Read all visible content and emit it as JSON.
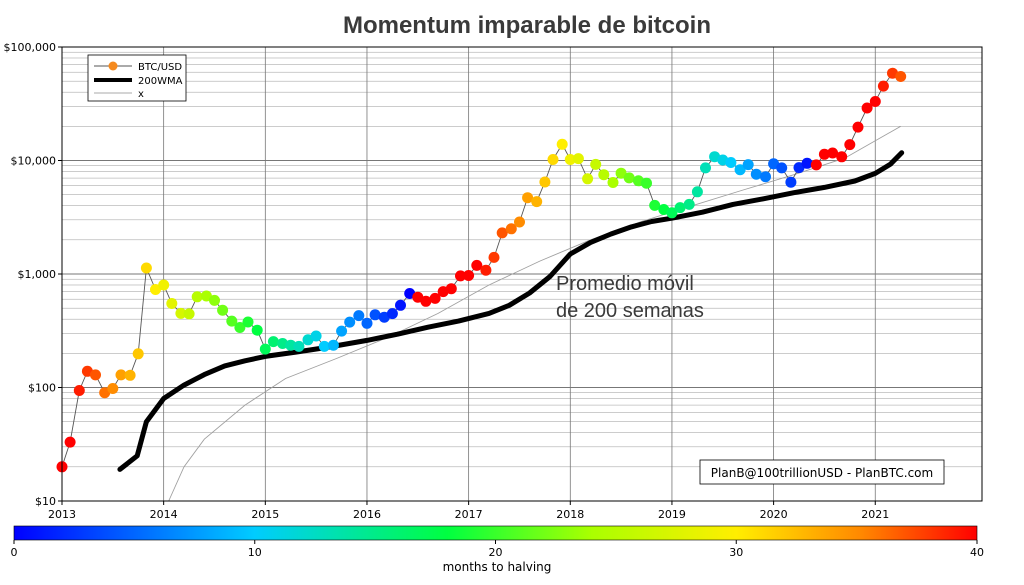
{
  "chart_data": {
    "type": "scatter",
    "title": "Momentum imparable de bitcoin",
    "y_scale": "log",
    "ylim": [
      10,
      100000
    ],
    "xlim": [
      2013.0,
      2022.05
    ],
    "y_ticks": [
      {
        "value": 10,
        "label": "$10"
      },
      {
        "value": 100,
        "label": "$100"
      },
      {
        "value": 1000,
        "label": "$1,000"
      },
      {
        "value": 10000,
        "label": "$10,000"
      },
      {
        "value": 100000,
        "label": "$100,000"
      }
    ],
    "x_ticks": [
      {
        "value": 2013,
        "label": "2013"
      },
      {
        "value": 2014,
        "label": "2014"
      },
      {
        "value": 2015,
        "label": "2015"
      },
      {
        "value": 2016,
        "label": "2016"
      },
      {
        "value": 2017,
        "label": "2017"
      },
      {
        "value": 2018,
        "label": "2018"
      },
      {
        "value": 2019,
        "label": "2019"
      },
      {
        "value": 2020,
        "label": "2020"
      },
      {
        "value": 2021,
        "label": "2021"
      }
    ],
    "grid": true,
    "legend_position": "top-left",
    "legend": [
      "BTC/USD",
      "200WMA",
      "x"
    ],
    "series": [
      {
        "name": "BTC/USD",
        "style": "monthly-dots colored by months to halving",
        "points": [
          {
            "x": 2013.0,
            "y": 20,
            "m": 41
          },
          {
            "x": 2013.08,
            "y": 33,
            "m": 40
          },
          {
            "x": 2013.17,
            "y": 94,
            "m": 39
          },
          {
            "x": 2013.25,
            "y": 139,
            "m": 38
          },
          {
            "x": 2013.33,
            "y": 129,
            "m": 37
          },
          {
            "x": 2013.42,
            "y": 90,
            "m": 36
          },
          {
            "x": 2013.5,
            "y": 98,
            "m": 35
          },
          {
            "x": 2013.58,
            "y": 129,
            "m": 34
          },
          {
            "x": 2013.67,
            "y": 128,
            "m": 33
          },
          {
            "x": 2013.75,
            "y": 198,
            "m": 32
          },
          {
            "x": 2013.83,
            "y": 1130,
            "m": 31
          },
          {
            "x": 2013.92,
            "y": 730,
            "m": 30
          },
          {
            "x": 2014.0,
            "y": 800,
            "m": 29
          },
          {
            "x": 2014.08,
            "y": 550,
            "m": 28
          },
          {
            "x": 2014.17,
            "y": 450,
            "m": 27
          },
          {
            "x": 2014.25,
            "y": 445,
            "m": 26
          },
          {
            "x": 2014.33,
            "y": 630,
            "m": 25
          },
          {
            "x": 2014.42,
            "y": 640,
            "m": 24
          },
          {
            "x": 2014.5,
            "y": 585,
            "m": 23
          },
          {
            "x": 2014.58,
            "y": 480,
            "m": 22
          },
          {
            "x": 2014.67,
            "y": 385,
            "m": 21
          },
          {
            "x": 2014.75,
            "y": 338,
            "m": 20
          },
          {
            "x": 2014.83,
            "y": 378,
            "m": 19
          },
          {
            "x": 2014.92,
            "y": 320,
            "m": 18
          },
          {
            "x": 2015.0,
            "y": 218,
            "m": 17
          },
          {
            "x": 2015.08,
            "y": 254,
            "m": 16
          },
          {
            "x": 2015.17,
            "y": 244,
            "m": 15
          },
          {
            "x": 2015.25,
            "y": 236,
            "m": 14
          },
          {
            "x": 2015.33,
            "y": 230,
            "m": 13
          },
          {
            "x": 2015.42,
            "y": 263,
            "m": 12
          },
          {
            "x": 2015.5,
            "y": 284,
            "m": 11
          },
          {
            "x": 2015.58,
            "y": 230,
            "m": 10
          },
          {
            "x": 2015.67,
            "y": 236,
            "m": 9
          },
          {
            "x": 2015.75,
            "y": 314,
            "m": 8
          },
          {
            "x": 2015.83,
            "y": 377,
            "m": 7
          },
          {
            "x": 2015.92,
            "y": 430,
            "m": 6
          },
          {
            "x": 2016.0,
            "y": 368,
            "m": 5
          },
          {
            "x": 2016.08,
            "y": 437,
            "m": 4
          },
          {
            "x": 2016.17,
            "y": 416,
            "m": 3
          },
          {
            "x": 2016.25,
            "y": 448,
            "m": 2
          },
          {
            "x": 2016.33,
            "y": 530,
            "m": 1
          },
          {
            "x": 2016.42,
            "y": 673,
            "m": 0
          },
          {
            "x": 2016.5,
            "y": 624,
            "m": 47
          },
          {
            "x": 2016.58,
            "y": 575,
            "m": 46
          },
          {
            "x": 2016.67,
            "y": 609,
            "m": 45
          },
          {
            "x": 2016.75,
            "y": 700,
            "m": 44
          },
          {
            "x": 2016.83,
            "y": 742,
            "m": 43
          },
          {
            "x": 2016.92,
            "y": 963,
            "m": 42
          },
          {
            "x": 2017.0,
            "y": 970,
            "m": 41
          },
          {
            "x": 2017.08,
            "y": 1190,
            "m": 40
          },
          {
            "x": 2017.17,
            "y": 1080,
            "m": 39
          },
          {
            "x": 2017.25,
            "y": 1400,
            "m": 38
          },
          {
            "x": 2017.33,
            "y": 2300,
            "m": 37
          },
          {
            "x": 2017.42,
            "y": 2500,
            "m": 36
          },
          {
            "x": 2017.5,
            "y": 2870,
            "m": 35
          },
          {
            "x": 2017.58,
            "y": 4700,
            "m": 34
          },
          {
            "x": 2017.67,
            "y": 4340,
            "m": 33
          },
          {
            "x": 2017.75,
            "y": 6470,
            "m": 32
          },
          {
            "x": 2017.83,
            "y": 10200,
            "m": 31
          },
          {
            "x": 2017.92,
            "y": 13900,
            "m": 30
          },
          {
            "x": 2018.0,
            "y": 10200,
            "m": 29
          },
          {
            "x": 2018.08,
            "y": 10400,
            "m": 28
          },
          {
            "x": 2018.17,
            "y": 6900,
            "m": 27
          },
          {
            "x": 2018.25,
            "y": 9240,
            "m": 26
          },
          {
            "x": 2018.33,
            "y": 7500,
            "m": 25
          },
          {
            "x": 2018.42,
            "y": 6400,
            "m": 24
          },
          {
            "x": 2018.5,
            "y": 7730,
            "m": 23
          },
          {
            "x": 2018.58,
            "y": 7030,
            "m": 22
          },
          {
            "x": 2018.67,
            "y": 6630,
            "m": 21
          },
          {
            "x": 2018.75,
            "y": 6310,
            "m": 20
          },
          {
            "x": 2018.83,
            "y": 4020,
            "m": 19
          },
          {
            "x": 2018.92,
            "y": 3700,
            "m": 18
          },
          {
            "x": 2019.0,
            "y": 3460,
            "m": 17
          },
          {
            "x": 2019.08,
            "y": 3850,
            "m": 16
          },
          {
            "x": 2019.17,
            "y": 4100,
            "m": 15
          },
          {
            "x": 2019.25,
            "y": 5300,
            "m": 14
          },
          {
            "x": 2019.33,
            "y": 8600,
            "m": 13
          },
          {
            "x": 2019.42,
            "y": 10800,
            "m": 12
          },
          {
            "x": 2019.5,
            "y": 10100,
            "m": 11
          },
          {
            "x": 2019.58,
            "y": 9600,
            "m": 10
          },
          {
            "x": 2019.67,
            "y": 8300,
            "m": 9
          },
          {
            "x": 2019.75,
            "y": 9200,
            "m": 8
          },
          {
            "x": 2019.83,
            "y": 7570,
            "m": 7
          },
          {
            "x": 2019.92,
            "y": 7200,
            "m": 6
          },
          {
            "x": 2020.0,
            "y": 9350,
            "m": 5
          },
          {
            "x": 2020.08,
            "y": 8600,
            "m": 4
          },
          {
            "x": 2020.17,
            "y": 6440,
            "m": 3
          },
          {
            "x": 2020.25,
            "y": 8650,
            "m": 2
          },
          {
            "x": 2020.33,
            "y": 9450,
            "m": 1
          },
          {
            "x": 2020.42,
            "y": 9140,
            "m": 47
          },
          {
            "x": 2020.5,
            "y": 11350,
            "m": 46
          },
          {
            "x": 2020.58,
            "y": 11650,
            "m": 45
          },
          {
            "x": 2020.67,
            "y": 10780,
            "m": 44
          },
          {
            "x": 2020.75,
            "y": 13800,
            "m": 43
          },
          {
            "x": 2020.83,
            "y": 19700,
            "m": 42
          },
          {
            "x": 2020.92,
            "y": 29000,
            "m": 41
          },
          {
            "x": 2021.0,
            "y": 33100,
            "m": 40
          },
          {
            "x": 2021.08,
            "y": 45200,
            "m": 39
          },
          {
            "x": 2021.17,
            "y": 58800,
            "m": 38
          },
          {
            "x": 2021.25,
            "y": 55000,
            "m": 37
          }
        ]
      },
      {
        "name": "200WMA",
        "style": "thick black line",
        "points": [
          {
            "x": 2013.57,
            "y": 19
          },
          {
            "x": 2013.74,
            "y": 25
          },
          {
            "x": 2013.83,
            "y": 50
          },
          {
            "x": 2014.0,
            "y": 80
          },
          {
            "x": 2014.2,
            "y": 105
          },
          {
            "x": 2014.4,
            "y": 130
          },
          {
            "x": 2014.6,
            "y": 155
          },
          {
            "x": 2014.8,
            "y": 172
          },
          {
            "x": 2015.0,
            "y": 188
          },
          {
            "x": 2015.3,
            "y": 205
          },
          {
            "x": 2015.6,
            "y": 225
          },
          {
            "x": 2016.0,
            "y": 260
          },
          {
            "x": 2016.3,
            "y": 295
          },
          {
            "x": 2016.6,
            "y": 340
          },
          {
            "x": 2016.9,
            "y": 385
          },
          {
            "x": 2017.2,
            "y": 450
          },
          {
            "x": 2017.4,
            "y": 530
          },
          {
            "x": 2017.6,
            "y": 680
          },
          {
            "x": 2017.8,
            "y": 950
          },
          {
            "x": 2018.0,
            "y": 1500
          },
          {
            "x": 2018.2,
            "y": 1900
          },
          {
            "x": 2018.4,
            "y": 2250
          },
          {
            "x": 2018.6,
            "y": 2600
          },
          {
            "x": 2018.8,
            "y": 2900
          },
          {
            "x": 2019.0,
            "y": 3100
          },
          {
            "x": 2019.3,
            "y": 3500
          },
          {
            "x": 2019.6,
            "y": 4100
          },
          {
            "x": 2019.9,
            "y": 4600
          },
          {
            "x": 2020.2,
            "y": 5200
          },
          {
            "x": 2020.5,
            "y": 5800
          },
          {
            "x": 2020.8,
            "y": 6600
          },
          {
            "x": 2021.0,
            "y": 7700
          },
          {
            "x": 2021.15,
            "y": 9300
          },
          {
            "x": 2021.26,
            "y": 11700
          }
        ]
      },
      {
        "name": "x",
        "style": "thin gray line",
        "points": [
          {
            "x": 2014.05,
            "y": 10
          },
          {
            "x": 2014.2,
            "y": 20
          },
          {
            "x": 2014.4,
            "y": 35
          },
          {
            "x": 2014.8,
            "y": 70
          },
          {
            "x": 2015.2,
            "y": 120
          },
          {
            "x": 2015.7,
            "y": 180
          },
          {
            "x": 2016.2,
            "y": 275
          },
          {
            "x": 2016.7,
            "y": 450
          },
          {
            "x": 2017.2,
            "y": 800
          },
          {
            "x": 2017.7,
            "y": 1300
          },
          {
            "x": 2018.2,
            "y": 2000
          },
          {
            "x": 2018.7,
            "y": 2900
          },
          {
            "x": 2019.2,
            "y": 4000
          },
          {
            "x": 2019.7,
            "y": 5500
          },
          {
            "x": 2020.2,
            "y": 7500
          },
          {
            "x": 2020.7,
            "y": 10500
          },
          {
            "x": 2021.25,
            "y": 20000
          }
        ]
      }
    ],
    "annotation": [
      "Promedio móvil",
      "de 200 semanas"
    ],
    "credit": "PlanB@100trillionUSD  -  PlanBTC.com",
    "colorbar": {
      "label": "months to halving",
      "min": 0,
      "max": 40,
      "ticks": [
        {
          "value": 0,
          "label": "0"
        },
        {
          "value": 10,
          "label": "10"
        },
        {
          "value": 20,
          "label": "20"
        },
        {
          "value": 30,
          "label": "30"
        },
        {
          "value": 40,
          "label": "40"
        }
      ]
    }
  }
}
